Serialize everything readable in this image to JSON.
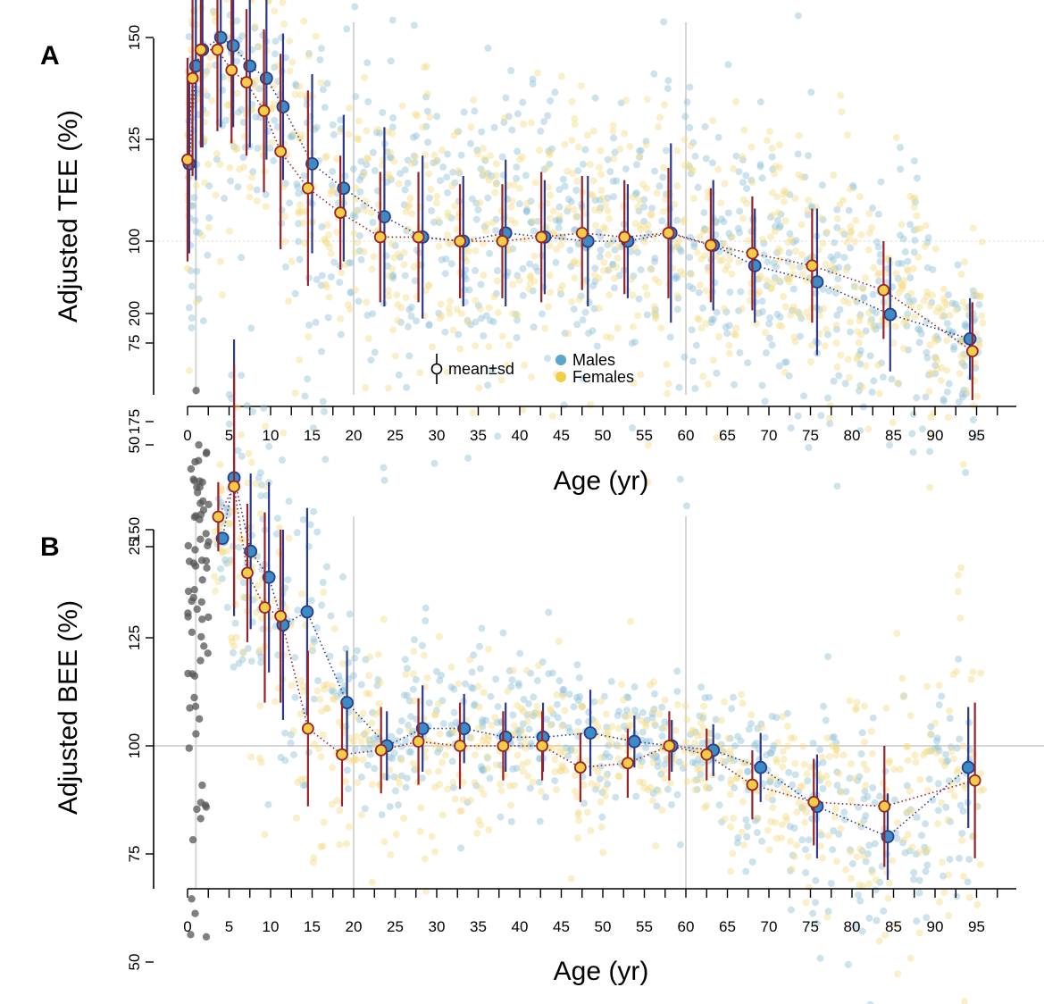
{
  "colors": {
    "male": "#5aa6c8",
    "male_dot": "#8fc0d8",
    "male_mean": "#3b8cc4",
    "male_bar": "#2c3a8c",
    "female": "#f2cd47",
    "female_dot": "#f3dc84",
    "female_mean": "#f2cd47",
    "female_bar": "#9a2228",
    "neonate": "#555555"
  },
  "legend": {
    "mean_sd": "mean±sd",
    "males": "Males",
    "females": "Females"
  },
  "chart_data": [
    {
      "panel_letter": "A",
      "type": "scatter",
      "title": "",
      "xlabel": "Age (yr)",
      "ylabel": "Adjusted TEE (%)",
      "xlim": [
        -1.5,
        99.5
      ],
      "ylim": [
        25,
        205
      ],
      "x_ticks": [
        "0",
        "5",
        "10",
        "15",
        "20",
        "25",
        "30",
        "35",
        "40",
        "45",
        "50",
        "55",
        "60",
        "65",
        "70",
        "75",
        "80",
        "85",
        "90",
        "95"
      ],
      "y_ticks": [
        "25",
        "50",
        "75",
        "100",
        "125",
        "150",
        "175",
        "200"
      ],
      "reference_lines_x": [
        1,
        20,
        60
      ],
      "reference_line_y": null,
      "series": [
        {
          "name": "Males",
          "points": [
            {
              "x": 0.2,
              "mean": 119,
              "sd": 22
            },
            {
              "x": 1.0,
              "mean": 143,
              "sd": 28
            },
            {
              "x": 1.8,
              "mean": 147,
              "sd": 24
            },
            {
              "x": 4.0,
              "mean": 150,
              "sd": 22
            },
            {
              "x": 5.5,
              "mean": 148,
              "sd": 20
            },
            {
              "x": 7.5,
              "mean": 143,
              "sd": 20
            },
            {
              "x": 9.5,
              "mean": 140,
              "sd": 20
            },
            {
              "x": 11.5,
              "mean": 133,
              "sd": 18
            },
            {
              "x": 15.0,
              "mean": 119,
              "sd": 22
            },
            {
              "x": 18.8,
              "mean": 113,
              "sd": 18
            },
            {
              "x": 23.7,
              "mean": 106,
              "sd": 22
            },
            {
              "x": 28.3,
              "mean": 101,
              "sd": 20
            },
            {
              "x": 33.2,
              "mean": 100,
              "sd": 16
            },
            {
              "x": 38.3,
              "mean": 102,
              "sd": 18
            },
            {
              "x": 43.0,
              "mean": 101,
              "sd": 14
            },
            {
              "x": 48.2,
              "mean": 100,
              "sd": 16
            },
            {
              "x": 53.0,
              "mean": 100,
              "sd": 14
            },
            {
              "x": 58.2,
              "mean": 102,
              "sd": 22
            },
            {
              "x": 63.3,
              "mean": 99,
              "sd": 16
            },
            {
              "x": 68.3,
              "mean": 94,
              "sd": 14
            },
            {
              "x": 75.8,
              "mean": 90,
              "sd": 18
            },
            {
              "x": 84.6,
              "mean": 82,
              "sd": 14
            },
            {
              "x": 94.2,
              "mean": 76,
              "sd": 10
            }
          ]
        },
        {
          "name": "Females",
          "points": [
            {
              "x": 0.0,
              "mean": 120,
              "sd": 25
            },
            {
              "x": 0.6,
              "mean": 140,
              "sd": 24
            },
            {
              "x": 1.6,
              "mean": 147,
              "sd": 24
            },
            {
              "x": 3.6,
              "mean": 147,
              "sd": 20
            },
            {
              "x": 5.3,
              "mean": 142,
              "sd": 18
            },
            {
              "x": 7.1,
              "mean": 139,
              "sd": 18
            },
            {
              "x": 9.2,
              "mean": 132,
              "sd": 20
            },
            {
              "x": 11.2,
              "mean": 122,
              "sd": 24
            },
            {
              "x": 14.5,
              "mean": 113,
              "sd": 24
            },
            {
              "x": 18.4,
              "mean": 107,
              "sd": 14
            },
            {
              "x": 23.2,
              "mean": 101,
              "sd": 16
            },
            {
              "x": 27.8,
              "mean": 101,
              "sd": 16
            },
            {
              "x": 32.8,
              "mean": 100,
              "sd": 14
            },
            {
              "x": 37.9,
              "mean": 100,
              "sd": 14
            },
            {
              "x": 42.6,
              "mean": 101,
              "sd": 16
            },
            {
              "x": 47.5,
              "mean": 102,
              "sd": 14
            },
            {
              "x": 52.6,
              "mean": 101,
              "sd": 14
            },
            {
              "x": 57.9,
              "mean": 102,
              "sd": 16
            },
            {
              "x": 63.0,
              "mean": 99,
              "sd": 14
            },
            {
              "x": 68.0,
              "mean": 97,
              "sd": 14
            },
            {
              "x": 75.2,
              "mean": 94,
              "sd": 14
            },
            {
              "x": 83.8,
              "mean": 88,
              "sd": 12
            },
            {
              "x": 94.5,
              "mean": 73,
              "sd": 12
            }
          ]
        }
      ]
    },
    {
      "panel_letter": "B",
      "type": "scatter",
      "title": "",
      "xlabel": "Age (yr)",
      "ylabel": "Adjusted BEE (%)",
      "xlim": [
        -1.5,
        99.5
      ],
      "ylim": [
        34,
        201
      ],
      "x_ticks": [
        "0",
        "5",
        "10",
        "15",
        "20",
        "25",
        "30",
        "35",
        "40",
        "45",
        "50",
        "55",
        "60",
        "65",
        "70",
        "75",
        "80",
        "85",
        "90",
        "95"
      ],
      "y_ticks": [
        "50",
        "75",
        "100",
        "125",
        "150",
        "175",
        "200"
      ],
      "reference_lines_x": [
        1,
        20,
        60
      ],
      "reference_line_y": 100,
      "series": [
        {
          "name": "Males",
          "points": [
            {
              "x": 4.2,
              "mean": 148,
              "sd": 0
            },
            {
              "x": 5.6,
              "mean": 162,
              "sd": 32
            },
            {
              "x": 7.6,
              "mean": 145,
              "sd": 18
            },
            {
              "x": 9.8,
              "mean": 139,
              "sd": 22
            },
            {
              "x": 11.5,
              "mean": 128,
              "sd": 22
            },
            {
              "x": 14.4,
              "mean": 131,
              "sd": 24
            },
            {
              "x": 19.2,
              "mean": 110,
              "sd": 12
            },
            {
              "x": 24.0,
              "mean": 100,
              "sd": 8
            },
            {
              "x": 28.3,
              "mean": 104,
              "sd": 10
            },
            {
              "x": 33.3,
              "mean": 104,
              "sd": 8
            },
            {
              "x": 38.3,
              "mean": 102,
              "sd": 8
            },
            {
              "x": 42.8,
              "mean": 102,
              "sd": 8
            },
            {
              "x": 48.5,
              "mean": 103,
              "sd": 10
            },
            {
              "x": 53.8,
              "mean": 101,
              "sd": 6
            },
            {
              "x": 58.3,
              "mean": 100,
              "sd": 6
            },
            {
              "x": 63.3,
              "mean": 99,
              "sd": 6
            },
            {
              "x": 69.0,
              "mean": 95,
              "sd": 8
            },
            {
              "x": 75.8,
              "mean": 86,
              "sd": 12
            },
            {
              "x": 84.3,
              "mean": 79,
              "sd": 10
            },
            {
              "x": 94.0,
              "mean": 95,
              "sd": 14
            }
          ]
        },
        {
          "name": "Females",
          "points": [
            {
              "x": 3.7,
              "mean": 153,
              "sd": 8
            },
            {
              "x": 5.6,
              "mean": 160,
              "sd": 28
            },
            {
              "x": 7.2,
              "mean": 140,
              "sd": 16
            },
            {
              "x": 9.3,
              "mean": 132,
              "sd": 22
            },
            {
              "x": 11.2,
              "mean": 130,
              "sd": 20
            },
            {
              "x": 14.5,
              "mean": 104,
              "sd": 18
            },
            {
              "x": 18.6,
              "mean": 98,
              "sd": 12
            },
            {
              "x": 23.3,
              "mean": 99,
              "sd": 10
            },
            {
              "x": 27.8,
              "mean": 101,
              "sd": 10
            },
            {
              "x": 32.8,
              "mean": 100,
              "sd": 10
            },
            {
              "x": 38.0,
              "mean": 100,
              "sd": 8
            },
            {
              "x": 42.7,
              "mean": 100,
              "sd": 8
            },
            {
              "x": 47.3,
              "mean": 95,
              "sd": 8
            },
            {
              "x": 53.0,
              "mean": 96,
              "sd": 8
            },
            {
              "x": 58.0,
              "mean": 100,
              "sd": 8
            },
            {
              "x": 62.5,
              "mean": 98,
              "sd": 6
            },
            {
              "x": 68.0,
              "mean": 91,
              "sd": 8
            },
            {
              "x": 75.4,
              "mean": 87,
              "sd": 10
            },
            {
              "x": 83.9,
              "mean": 86,
              "sd": 14
            },
            {
              "x": 94.8,
              "mean": 92,
              "sd": 18
            }
          ]
        }
      ]
    }
  ]
}
